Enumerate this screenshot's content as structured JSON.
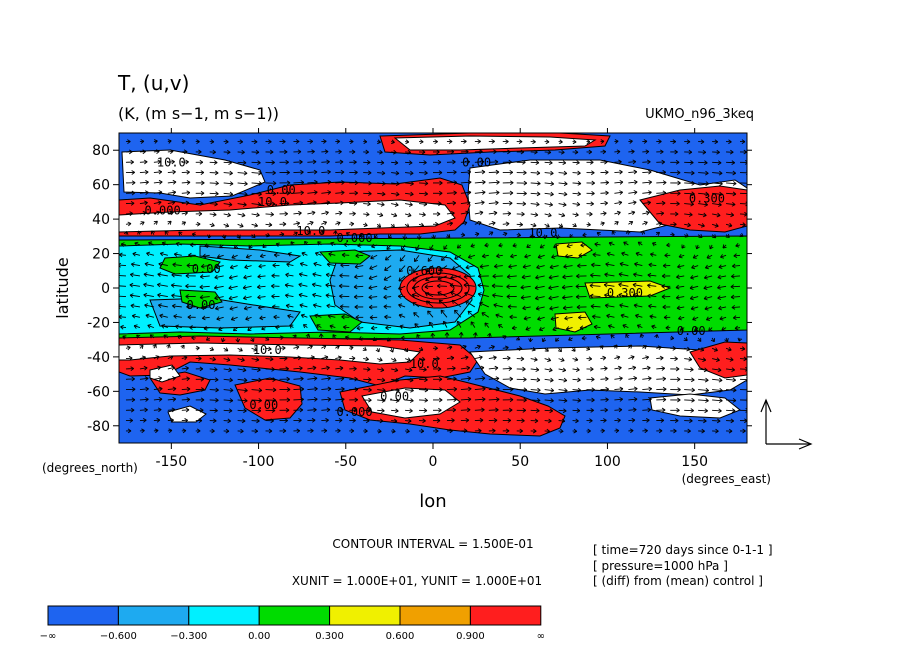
{
  "chart_data": {
    "type": "heatmap",
    "title": "T, (u,v)",
    "subtitle": "(K, (m s−1, m s−1))",
    "dataset": "UKMO_n96_3keq",
    "xlabel": "lon",
    "ylabel": "latitude",
    "x_unit_label": "(degrees_east)",
    "y_unit_label": "(degrees_north)",
    "xlim": [
      -180,
      180
    ],
    "ylim": [
      -90,
      90
    ],
    "x_ticks": [
      -150,
      -100,
      -50,
      0,
      50,
      100,
      150
    ],
    "y_ticks": [
      80,
      60,
      40,
      20,
      0,
      -20,
      -40,
      -60,
      -80
    ],
    "color_levels": {
      "boundaries": [
        "−∞",
        "−0.600",
        "−0.300",
        "0.00",
        "0.300",
        "0.600",
        "0.900",
        "∞"
      ],
      "colors": [
        "#1e64f0",
        "#1eaaf0",
        "#00f0ff",
        "#00dc00",
        "#f0f000",
        "#f0a000",
        "#ff1e1e"
      ]
    },
    "contour_labels": [
      {
        "text": "10.0",
        "lon": -150,
        "lat": 73
      },
      {
        "text": "0.00",
        "lon": 25,
        "lat": 73
      },
      {
        "text": "0.00",
        "lon": -87,
        "lat": 57
      },
      {
        "text": "10.0",
        "lon": -92,
        "lat": 50
      },
      {
        "text": "0.000",
        "lon": -155,
        "lat": 45
      },
      {
        "text": "0.300",
        "lon": 157,
        "lat": 52
      },
      {
        "text": "10.0",
        "lon": -70,
        "lat": 33
      },
      {
        "text": "0.000",
        "lon": -45,
        "lat": 29
      },
      {
        "text": "10.0",
        "lon": 63,
        "lat": 32
      },
      {
        "text": "0.00",
        "lon": -130,
        "lat": 11
      },
      {
        "text": "0.600",
        "lon": -5,
        "lat": 10
      },
      {
        "text": "0.300",
        "lon": 110,
        "lat": -3
      },
      {
        "text": "0.00",
        "lon": -133,
        "lat": -10
      },
      {
        "text": "10.0",
        "lon": -95,
        "lat": -36
      },
      {
        "text": "10.0",
        "lon": -5,
        "lat": -44
      },
      {
        "text": "0.00",
        "lon": 148,
        "lat": -25
      },
      {
        "text": "0.00",
        "lon": -97,
        "lat": -68
      },
      {
        "text": "0.00",
        "lon": -22,
        "lat": -63
      },
      {
        "text": "0.000",
        "lon": -45,
        "lat": -72
      }
    ],
    "contour_interval": "CONTOUR INTERVAL = 1.500E-01",
    "vector_units": "XUNIT = 1.000E+01, YUNIT = 1.000E+01",
    "info_lines": [
      "[ time=720 days since 0-1-1 ]",
      "[ pressure=1000 hPa ]",
      "[ (diff) from (mean) control ]"
    ],
    "grid": false
  }
}
